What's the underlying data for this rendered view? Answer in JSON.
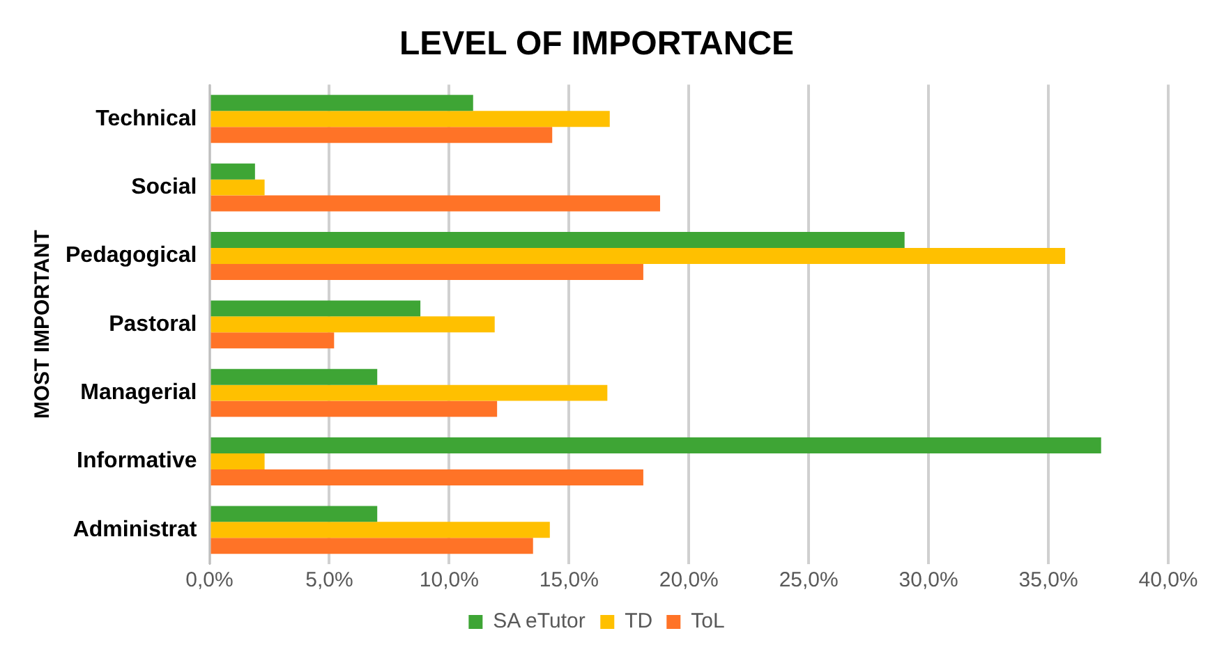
{
  "chart_data": {
    "type": "bar",
    "orientation": "horizontal",
    "title": "LEVEL OF IMPORTANCE",
    "ylabel": "MOST IMPORTANT",
    "categories": [
      "Technical",
      "Social",
      "Pedagogical",
      "Pastoral",
      "Managerial",
      "Informative",
      "Administrat"
    ],
    "series": [
      {
        "name": "SA eTutor",
        "color": "#3ea535",
        "values": [
          11.0,
          1.9,
          29.0,
          8.8,
          7.0,
          37.2,
          7.0
        ]
      },
      {
        "name": "TD",
        "color": "#ffc000",
        "values": [
          16.7,
          2.3,
          35.7,
          11.9,
          16.6,
          2.3,
          14.2
        ]
      },
      {
        "name": "ToL",
        "color": "#ff7327",
        "values": [
          14.3,
          18.8,
          18.1,
          5.2,
          12.0,
          18.1,
          13.5
        ]
      }
    ],
    "xlim": [
      0,
      40
    ],
    "xticks": [
      {
        "value": 0,
        "label": "0,0%"
      },
      {
        "value": 5,
        "label": "5,0%"
      },
      {
        "value": 10,
        "label": "10,0%"
      },
      {
        "value": 15,
        "label": "15,0%"
      },
      {
        "value": 20,
        "label": "20,0%"
      },
      {
        "value": 25,
        "label": "25,0%"
      },
      {
        "value": 30,
        "label": "30,0%"
      },
      {
        "value": 35,
        "label": "35,0%"
      },
      {
        "value": 40,
        "label": "40,0%"
      }
    ],
    "grid": "x",
    "legend": "bottom"
  }
}
